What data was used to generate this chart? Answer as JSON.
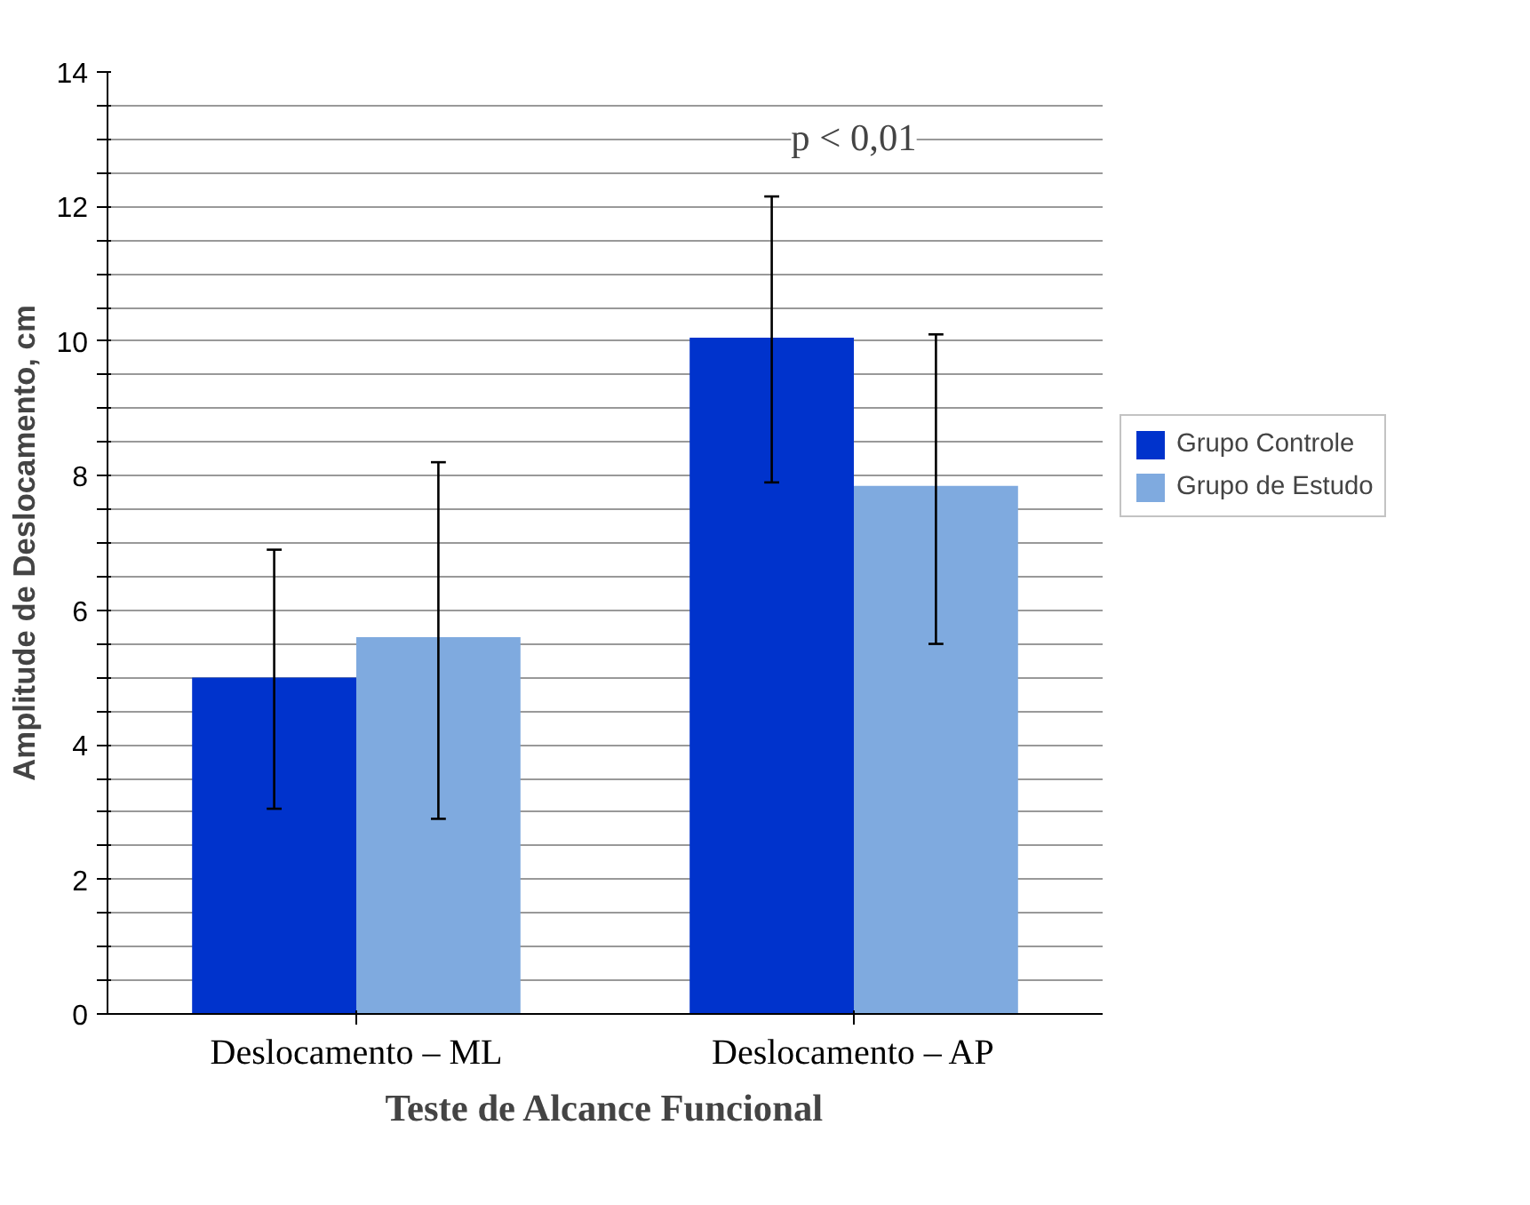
{
  "chart_data": {
    "type": "bar",
    "xlabel": "Teste de Alcance Funcional",
    "ylabel": "Amplitude de Deslocamento, cm",
    "categories": [
      "Deslocamento – ML",
      "Deslocamento – AP"
    ],
    "series": [
      {
        "name": "Grupo Controle",
        "color": "#0033cc",
        "values": [
          5.0,
          10.05
        ],
        "errors": [
          [
            3.05,
            6.9
          ],
          [
            7.9,
            12.15
          ]
        ]
      },
      {
        "name": "Grupo de Estudo",
        "color": "#7faadf",
        "values": [
          5.6,
          7.85
        ],
        "errors": [
          [
            2.9,
            8.2
          ],
          [
            5.5,
            10.1
          ]
        ]
      }
    ],
    "ylim": [
      0,
      14
    ],
    "yticks": [
      0,
      {
        "value": 0.5,
        "label": null
      },
      {
        "value": 1,
        "label": null
      },
      {
        "value": 1.5,
        "label": null
      },
      2,
      {
        "value": 2.5,
        "label": null
      },
      {
        "value": 3,
        "label": null
      },
      {
        "value": 3.5,
        "label": null
      },
      4,
      {
        "value": 4.5,
        "label": null
      },
      {
        "value": 5,
        "label": null
      },
      {
        "value": 5.5,
        "label": null
      },
      6,
      {
        "value": 6.5,
        "label": null
      },
      {
        "value": 7,
        "label": null
      },
      {
        "value": 7.5,
        "label": null
      },
      8,
      {
        "value": 8.5,
        "label": null
      },
      {
        "value": 9,
        "label": null
      },
      {
        "value": 9.5,
        "label": null
      },
      10,
      {
        "value": 10.5,
        "label": null
      },
      {
        "value": 11,
        "label": null
      },
      {
        "value": 11.5,
        "label": null
      },
      12,
      {
        "value": 12.5,
        "label": null
      },
      {
        "value": 13,
        "label": null
      },
      {
        "value": 13.5,
        "label": null
      },
      14
    ],
    "grid": "y",
    "legend": "right",
    "annotations": [
      "p < 0,01"
    ]
  }
}
